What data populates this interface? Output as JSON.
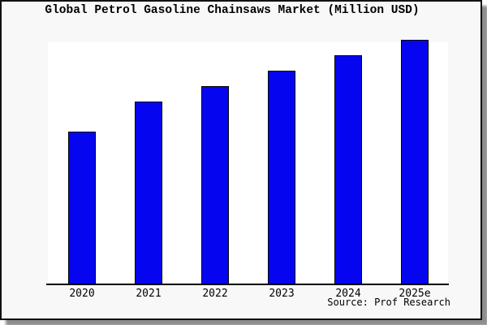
{
  "page": {
    "background": "#ffffff",
    "frame_background": "#f8f8f8",
    "frame_border_color": "#111111",
    "shadow_color": "#8e8e8e"
  },
  "chart_data": {
    "type": "bar",
    "title": "Global Petrol Gasoline Chainsaws Market (Million USD)",
    "categories": [
      "2020",
      "2021",
      "2022",
      "2023",
      "2024",
      "2025e"
    ],
    "values": [
      188,
      225,
      244,
      263,
      282,
      301
    ],
    "ylim": [
      0,
      298
    ],
    "value_scale_note": "no y-axis, gridlines or value labels visible; values are relative bar heights",
    "xlabel": "",
    "ylabel": "",
    "grid": false,
    "legend": false,
    "y_axis_visible": false,
    "bar_color": "#0505f0",
    "bar_border_color": "#000000",
    "axis_color": "#000000",
    "plot_background": "#ffffff",
    "source": "Source: Prof Research"
  }
}
